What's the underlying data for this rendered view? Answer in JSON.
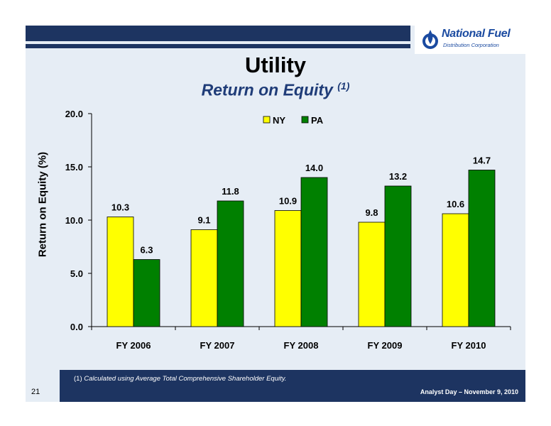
{
  "slide": {
    "title": "Utility",
    "subtitle": "Return on Equity",
    "subtitle_sup": "(1)",
    "footnote_num": "(1)",
    "footnote_text": "Calculated using Average Total Comprehensive Shareholder Equity.",
    "page_number": "21",
    "footer_right": "Analyst Day – November 9, 2010",
    "logo_name": "National Fuel",
    "logo_sub": "Distribution Corporation"
  },
  "colors": {
    "navy": "#1d3461",
    "ny": "#ffff00",
    "pa": "#008000"
  },
  "chart_data": {
    "type": "bar",
    "categories": [
      "FY 2006",
      "FY 2007",
      "FY 2008",
      "FY 2009",
      "FY 2010"
    ],
    "series": [
      {
        "name": "NY",
        "values": [
          10.3,
          9.1,
          10.9,
          9.8,
          10.6
        ],
        "labels": [
          "10.3",
          "9.1",
          "10.9",
          "9.8",
          "10.6"
        ]
      },
      {
        "name": "PA",
        "values": [
          6.3,
          11.8,
          14.0,
          13.2,
          14.7
        ],
        "labels": [
          "6.3",
          "11.8",
          "14.0",
          "13.2",
          "14.7"
        ]
      }
    ],
    "ylabel": "Return on Equity (%)",
    "ylim": [
      0,
      20
    ],
    "yticks": [
      "0.0",
      "5.0",
      "10.0",
      "15.0",
      "20.0"
    ],
    "legend": "top-center",
    "grid": false
  }
}
